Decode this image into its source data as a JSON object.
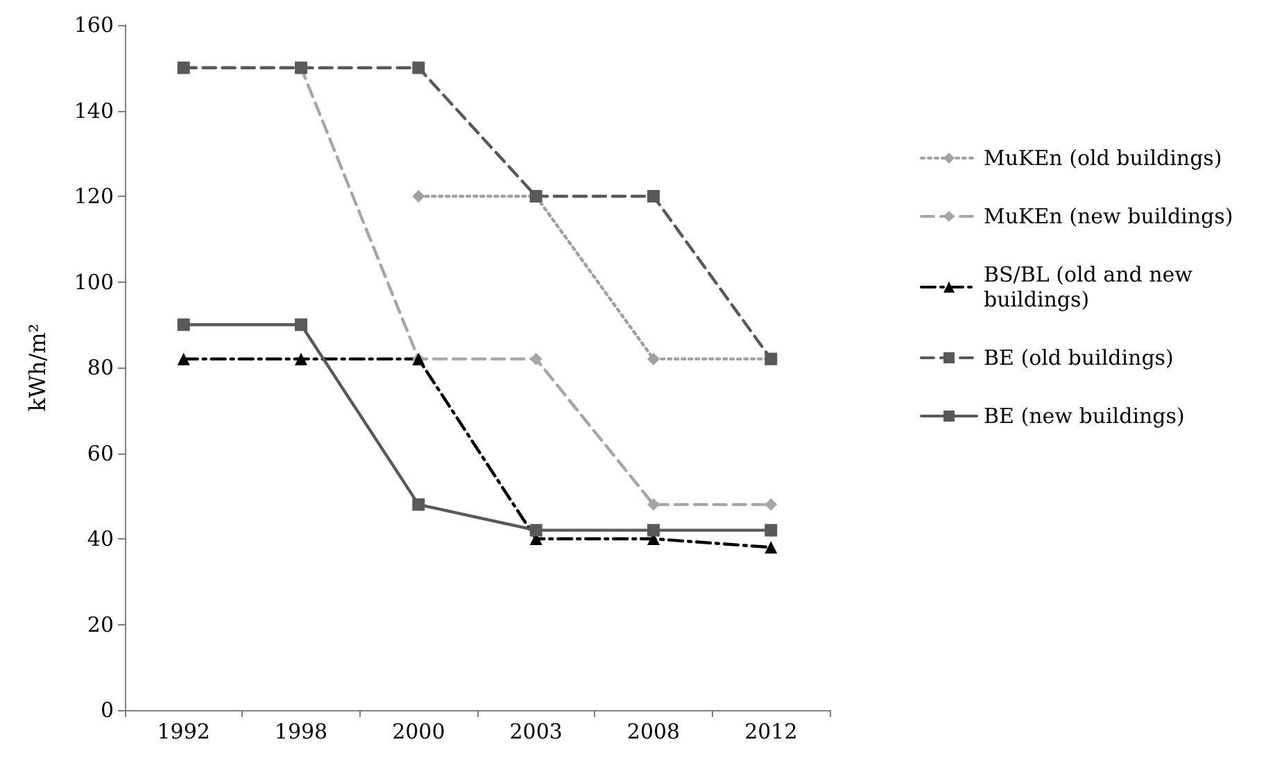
{
  "chart_data": {
    "type": "line",
    "ylabel": "kWh/m²",
    "categories": [
      "1992",
      "1998",
      "2000",
      "2003",
      "2008",
      "2012"
    ],
    "series": [
      {
        "name": "MuKEn (old buildings)",
        "color": "#a0a0a0",
        "line_style": "dotted",
        "marker": "diamond",
        "values": [
          null,
          null,
          120,
          120,
          82,
          82
        ]
      },
      {
        "name": "MuKEn (new buildings)",
        "color": "#a6a6a6",
        "line_style": "dashed",
        "marker": "diamond",
        "values": [
          150,
          150,
          82,
          82,
          48,
          48
        ]
      },
      {
        "name": "BS/BL (old and new buildings)",
        "color": "#000000",
        "line_style": "dashdot",
        "marker": "triangle",
        "values": [
          82,
          82,
          82,
          40,
          40,
          38
        ]
      },
      {
        "name": "BE (old buildings)",
        "color": "#595959",
        "line_style": "dashed",
        "marker": "square",
        "values": [
          150,
          150,
          150,
          120,
          120,
          82
        ]
      },
      {
        "name": "BE (new buildings)",
        "color": "#595959",
        "line_style": "solid",
        "marker": "square",
        "values": [
          90,
          90,
          48,
          42,
          42,
          42
        ]
      }
    ],
    "ylim": [
      0,
      160
    ],
    "yticks": [
      0,
      20,
      40,
      60,
      80,
      100,
      120,
      140,
      160
    ],
    "grid": false,
    "legend": "right"
  }
}
